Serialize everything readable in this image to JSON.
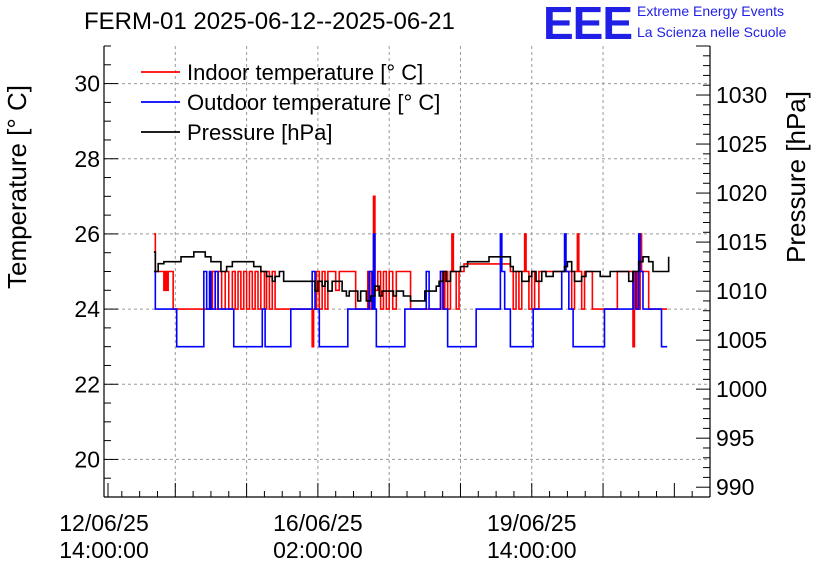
{
  "title": "FERM-01 2025-06-12--2025-06-21",
  "logo": {
    "mark": "EEE",
    "line1": "Extreme Energy Events",
    "line2": "La Scienza nelle Scuole",
    "color": "#1f1fe6"
  },
  "chart_data": {
    "type": "line",
    "ylabel": "Temperature [° C]",
    "y2label": "Pressure [hPa]",
    "ylim": [
      19,
      31
    ],
    "y2lim": [
      989,
      1035
    ],
    "xlim": [
      0,
      8.5
    ],
    "x_unit": "days since 12/06/25 14:00:00",
    "x_ticks": [
      {
        "x": 0,
        "line1": "12/06/25",
        "line2": "14:00:00"
      },
      {
        "x": 3,
        "line1": "16/06/25",
        "line2": "02:00:00"
      },
      {
        "x": 6,
        "line1": "19/06/25",
        "line2": "14:00:00"
      }
    ],
    "y_ticks": [
      20,
      22,
      24,
      26,
      28,
      30
    ],
    "y2_ticks": [
      990,
      995,
      1000,
      1005,
      1010,
      1015,
      1020,
      1025,
      1030
    ],
    "grid": true,
    "legend_position": "top-left",
    "series": [
      {
        "name": "Indoor temperature [° C]",
        "color": "#ff0000",
        "axis": "left",
        "step": true,
        "points": [
          [
            0.7,
            26
          ],
          [
            0.72,
            25
          ],
          [
            0.82,
            25
          ],
          [
            0.84,
            24.5
          ],
          [
            0.86,
            25
          ],
          [
            0.88,
            24.5
          ],
          [
            0.9,
            25
          ],
          [
            0.95,
            25
          ],
          [
            0.97,
            24
          ],
          [
            1.5,
            24
          ],
          [
            1.52,
            25
          ],
          [
            1.56,
            24
          ],
          [
            1.6,
            25
          ],
          [
            1.65,
            24
          ],
          [
            1.7,
            25
          ],
          [
            1.75,
            24
          ],
          [
            1.8,
            25
          ],
          [
            1.84,
            24
          ],
          [
            1.88,
            25
          ],
          [
            1.92,
            24
          ],
          [
            1.96,
            25
          ],
          [
            2,
            24
          ],
          [
            2.04,
            25
          ],
          [
            2.08,
            24
          ],
          [
            2.12,
            25
          ],
          [
            2.16,
            24
          ],
          [
            2.2,
            25
          ],
          [
            2.25,
            24
          ],
          [
            2.28,
            25
          ],
          [
            2.32,
            24
          ],
          [
            2.36,
            25
          ],
          [
            2.4,
            24
          ],
          [
            2.9,
            24
          ],
          [
            2.92,
            23
          ],
          [
            2.94,
            24
          ],
          [
            2.98,
            25
          ],
          [
            3.02,
            24
          ],
          [
            3.06,
            25
          ],
          [
            3.1,
            24
          ],
          [
            3.14,
            25
          ],
          [
            3.2,
            25
          ],
          [
            3.25,
            24.5
          ],
          [
            3.3,
            25
          ],
          [
            3.5,
            25
          ],
          [
            3.53,
            24
          ],
          [
            3.68,
            24
          ],
          [
            3.7,
            25
          ],
          [
            3.73,
            24
          ],
          [
            3.76,
            25
          ],
          [
            3.78,
            27
          ],
          [
            3.8,
            24.5
          ],
          [
            3.84,
            25
          ],
          [
            3.88,
            24
          ],
          [
            3.92,
            25
          ],
          [
            3.96,
            24
          ],
          [
            4,
            25
          ],
          [
            4.05,
            24
          ],
          [
            4.1,
            25
          ],
          [
            4.2,
            25
          ],
          [
            4.3,
            24
          ],
          [
            4.5,
            24
          ],
          [
            4.7,
            24
          ],
          [
            4.72,
            25
          ],
          [
            4.75,
            24
          ],
          [
            4.78,
            25
          ],
          [
            4.82,
            24
          ],
          [
            4.86,
            25
          ],
          [
            4.88,
            26
          ],
          [
            4.9,
            25
          ],
          [
            4.94,
            24
          ],
          [
            4.98,
            25
          ],
          [
            5.05,
            25.2
          ],
          [
            5.3,
            25.2
          ],
          [
            5.4,
            25.2
          ],
          [
            5.6,
            25.2
          ],
          [
            5.7,
            25
          ],
          [
            5.74,
            24
          ],
          [
            5.78,
            25
          ],
          [
            5.82,
            24
          ],
          [
            5.86,
            25
          ],
          [
            5.9,
            26
          ],
          [
            5.92,
            25
          ],
          [
            5.96,
            24
          ],
          [
            6.0,
            25
          ],
          [
            6.04,
            24
          ],
          [
            6.1,
            25
          ],
          [
            6.3,
            25
          ],
          [
            6.5,
            25
          ],
          [
            6.56,
            24
          ],
          [
            6.6,
            25
          ],
          [
            6.64,
            26
          ],
          [
            6.66,
            25
          ],
          [
            6.7,
            24
          ],
          [
            6.74,
            25
          ],
          [
            6.78,
            25
          ],
          [
            6.85,
            24
          ],
          [
            7.1,
            24
          ],
          [
            7.2,
            25
          ],
          [
            7.4,
            25
          ],
          [
            7.42,
            23
          ],
          [
            7.44,
            25
          ],
          [
            7.48,
            24
          ],
          [
            7.52,
            26
          ],
          [
            7.54,
            25
          ],
          [
            7.6,
            25
          ],
          [
            7.64,
            24
          ],
          [
            7.8,
            24
          ],
          [
            7.9,
            24
          ]
        ]
      },
      {
        "name": "Outdoor temperature [° C]",
        "color": "#0000ff",
        "axis": "left",
        "step": true,
        "points": [
          [
            0.7,
            25
          ],
          [
            0.72,
            24
          ],
          [
            1.0,
            24
          ],
          [
            1.02,
            23
          ],
          [
            1.38,
            23
          ],
          [
            1.4,
            25
          ],
          [
            1.44,
            24
          ],
          [
            1.48,
            25
          ],
          [
            1.5,
            24
          ],
          [
            1.54,
            24
          ],
          [
            1.56,
            25
          ],
          [
            1.6,
            24
          ],
          [
            1.8,
            24
          ],
          [
            1.82,
            23
          ],
          [
            2.2,
            23
          ],
          [
            2.22,
            24
          ],
          [
            2.26,
            23
          ],
          [
            2.6,
            23
          ],
          [
            2.62,
            24
          ],
          [
            2.9,
            24
          ],
          [
            2.92,
            25
          ],
          [
            2.96,
            24
          ],
          [
            3.0,
            24
          ],
          [
            3.02,
            23
          ],
          [
            3.4,
            23
          ],
          [
            3.42,
            24
          ],
          [
            3.7,
            24
          ],
          [
            3.72,
            25
          ],
          [
            3.76,
            24
          ],
          [
            3.78,
            26
          ],
          [
            3.8,
            24
          ],
          [
            3.82,
            23
          ],
          [
            4.2,
            23
          ],
          [
            4.22,
            24
          ],
          [
            4.5,
            24
          ],
          [
            4.52,
            25
          ],
          [
            4.56,
            24
          ],
          [
            4.7,
            24
          ],
          [
            4.72,
            25
          ],
          [
            4.76,
            24
          ],
          [
            4.8,
            24
          ],
          [
            4.82,
            23
          ],
          [
            5.2,
            23
          ],
          [
            5.22,
            24
          ],
          [
            5.54,
            24
          ],
          [
            5.56,
            26
          ],
          [
            5.58,
            25
          ],
          [
            5.62,
            24
          ],
          [
            5.68,
            24
          ],
          [
            5.7,
            23
          ],
          [
            6.0,
            23
          ],
          [
            6.02,
            24
          ],
          [
            6.4,
            24
          ],
          [
            6.42,
            25
          ],
          [
            6.46,
            26
          ],
          [
            6.48,
            25
          ],
          [
            6.52,
            24
          ],
          [
            6.56,
            24
          ],
          [
            6.58,
            23
          ],
          [
            7.0,
            23
          ],
          [
            7.02,
            24
          ],
          [
            7.4,
            24
          ],
          [
            7.42,
            25
          ],
          [
            7.46,
            24
          ],
          [
            7.5,
            26
          ],
          [
            7.52,
            25
          ],
          [
            7.56,
            24
          ],
          [
            7.8,
            24
          ],
          [
            7.82,
            23
          ],
          [
            7.9,
            23
          ]
        ]
      },
      {
        "name": "Pressure [hPa]",
        "color": "#000000",
        "axis": "right",
        "step": true,
        "points": [
          [
            0.7,
            1014
          ],
          [
            0.72,
            1012
          ],
          [
            0.76,
            1012.8
          ],
          [
            0.84,
            1013
          ],
          [
            1.0,
            1013
          ],
          [
            1.08,
            1013.5
          ],
          [
            1.26,
            1014
          ],
          [
            1.38,
            1014
          ],
          [
            1.42,
            1013.5
          ],
          [
            1.5,
            1013
          ],
          [
            1.58,
            1013
          ],
          [
            1.64,
            1012
          ],
          [
            1.72,
            1012.5
          ],
          [
            1.8,
            1013
          ],
          [
            2.0,
            1013
          ],
          [
            2.1,
            1012.5
          ],
          [
            2.2,
            1012
          ],
          [
            2.28,
            1011.5
          ],
          [
            2.36,
            1011
          ],
          [
            2.4,
            1011.5
          ],
          [
            2.46,
            1012
          ],
          [
            2.52,
            1011
          ],
          [
            2.6,
            1011
          ],
          [
            2.8,
            1011
          ],
          [
            2.9,
            1011
          ],
          [
            2.96,
            1010
          ],
          [
            3.0,
            1011
          ],
          [
            3.06,
            1010.5
          ],
          [
            3.1,
            1011
          ],
          [
            3.14,
            1010
          ],
          [
            3.2,
            1011
          ],
          [
            3.3,
            1011
          ],
          [
            3.34,
            1010
          ],
          [
            3.4,
            1009.5
          ],
          [
            3.44,
            1010
          ],
          [
            3.5,
            1010
          ],
          [
            3.56,
            1009
          ],
          [
            3.6,
            1010
          ],
          [
            3.68,
            1009
          ],
          [
            3.74,
            1009.5
          ],
          [
            3.8,
            1010.5
          ],
          [
            3.86,
            1009.5
          ],
          [
            3.9,
            1010
          ],
          [
            4.0,
            1010
          ],
          [
            4.06,
            1009.5
          ],
          [
            4.1,
            1010
          ],
          [
            4.2,
            1009.5
          ],
          [
            4.3,
            1009
          ],
          [
            4.4,
            1009
          ],
          [
            4.5,
            1010
          ],
          [
            4.6,
            1010
          ],
          [
            4.66,
            1010.5
          ],
          [
            4.7,
            1011
          ],
          [
            4.76,
            1012
          ],
          [
            4.8,
            1011
          ],
          [
            4.86,
            1012
          ],
          [
            4.9,
            1012
          ],
          [
            5.0,
            1012.5
          ],
          [
            5.1,
            1013
          ],
          [
            5.3,
            1013
          ],
          [
            5.4,
            1013.5
          ],
          [
            5.6,
            1013.5
          ],
          [
            5.7,
            1012.5
          ],
          [
            5.74,
            1012
          ],
          [
            5.8,
            1012
          ],
          [
            5.86,
            1011
          ],
          [
            5.9,
            1011
          ],
          [
            5.96,
            1011.5
          ],
          [
            6.0,
            1012
          ],
          [
            6.06,
            1011
          ],
          [
            6.14,
            1012
          ],
          [
            6.2,
            1011.5
          ],
          [
            6.3,
            1012
          ],
          [
            6.4,
            1012
          ],
          [
            6.46,
            1012.5
          ],
          [
            6.5,
            1013
          ],
          [
            6.56,
            1012
          ],
          [
            6.6,
            1011
          ],
          [
            6.66,
            1011
          ],
          [
            6.7,
            1011.5
          ],
          [
            6.76,
            1012
          ],
          [
            6.86,
            1012
          ],
          [
            6.96,
            1011.5
          ],
          [
            7.1,
            1012
          ],
          [
            7.3,
            1012
          ],
          [
            7.36,
            1011
          ],
          [
            7.42,
            1012
          ],
          [
            7.5,
            1013
          ],
          [
            7.56,
            1013.5
          ],
          [
            7.64,
            1013
          ],
          [
            7.7,
            1012
          ],
          [
            7.9,
            1012
          ],
          [
            7.92,
            1013.5
          ]
        ]
      }
    ]
  }
}
